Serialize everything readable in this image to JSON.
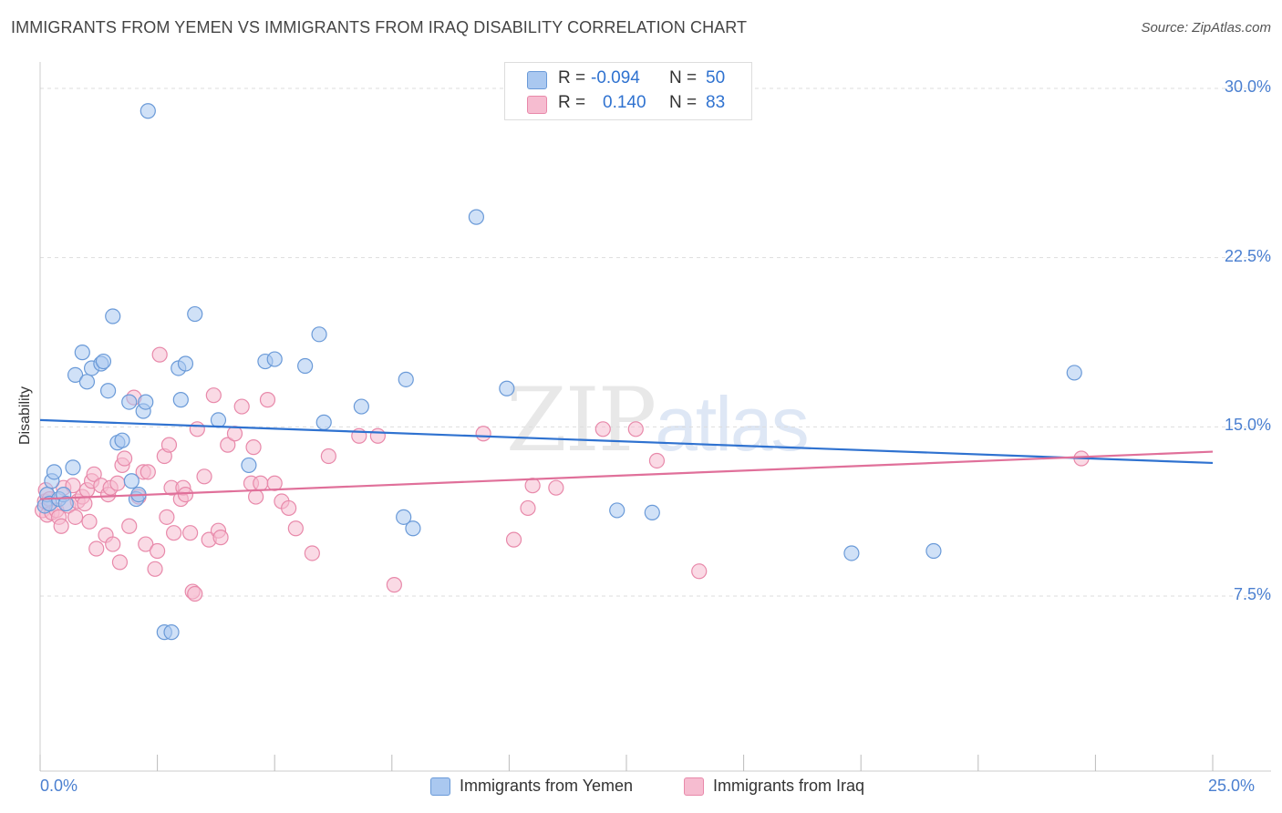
{
  "header": {
    "title": "IMMIGRANTS FROM YEMEN VS IMMIGRANTS FROM IRAQ DISABILITY CORRELATION CHART",
    "source": "Source: ZipAtlas.com"
  },
  "watermark": {
    "zip": "ZIP",
    "atlas": "atlas"
  },
  "stats": {
    "yemen": {
      "r_label": "R =",
      "r_value": "-0.094",
      "n_label": "N =",
      "n_value": "50"
    },
    "iraq": {
      "r_label": "R =",
      "r_value": "0.140",
      "n_label": "N =",
      "n_value": "83"
    }
  },
  "legend": {
    "yemen": "Immigrants from Yemen",
    "iraq": "Immigrants from Iraq"
  },
  "colors": {
    "yemen_fill": "#aac8f0",
    "yemen_stroke": "#6a9ad8",
    "yemen_line": "#2f72d0",
    "iraq_fill": "#f6bcd0",
    "iraq_stroke": "#e889aa",
    "iraq_line": "#e0709a",
    "tick_text": "#4a7fd0",
    "grid": "#dddddd"
  },
  "chart_data": {
    "type": "scatter",
    "title": "IMMIGRANTS FROM YEMEN VS IMMIGRANTS FROM IRAQ DISABILITY CORRELATION CHART",
    "xlabel": "",
    "ylabel": "Disability",
    "xlim": [
      0,
      25
    ],
    "ylim": [
      0,
      31
    ],
    "x_tick_labels": [
      "0.0%",
      "25.0%"
    ],
    "y_ticks": [
      7.5,
      15.0,
      22.5,
      30.0
    ],
    "y_tick_labels": [
      "7.5%",
      "15.0%",
      "22.5%",
      "30.0%"
    ],
    "grid": "horizontal dashed",
    "legend_position": "bottom-center",
    "series": [
      {
        "name": "Immigrants from Yemen",
        "trend": {
          "x": [
            0,
            25
          ],
          "y": [
            15.3,
            13.4
          ]
        },
        "points": [
          [
            0.1,
            11.5
          ],
          [
            0.15,
            12.0
          ],
          [
            0.2,
            11.6
          ],
          [
            0.25,
            12.6
          ],
          [
            0.3,
            13.0
          ],
          [
            0.4,
            11.8
          ],
          [
            0.5,
            12.0
          ],
          [
            0.55,
            11.6
          ],
          [
            0.7,
            13.2
          ],
          [
            0.75,
            17.3
          ],
          [
            0.9,
            18.3
          ],
          [
            1.0,
            17.0
          ],
          [
            1.1,
            17.6
          ],
          [
            1.3,
            17.8
          ],
          [
            1.35,
            17.9
          ],
          [
            1.45,
            16.6
          ],
          [
            1.55,
            19.9
          ],
          [
            1.65,
            14.3
          ],
          [
            1.75,
            14.4
          ],
          [
            1.9,
            16.1
          ],
          [
            1.95,
            12.6
          ],
          [
            2.05,
            11.8
          ],
          [
            2.1,
            12.0
          ],
          [
            2.2,
            15.7
          ],
          [
            2.25,
            16.1
          ],
          [
            2.3,
            29.0
          ],
          [
            2.65,
            5.9
          ],
          [
            2.8,
            5.9
          ],
          [
            2.95,
            17.6
          ],
          [
            3.0,
            16.2
          ],
          [
            3.1,
            17.8
          ],
          [
            3.3,
            20.0
          ],
          [
            3.8,
            15.3
          ],
          [
            4.45,
            13.3
          ],
          [
            4.8,
            17.9
          ],
          [
            5.0,
            18.0
          ],
          [
            5.65,
            17.7
          ],
          [
            5.95,
            19.1
          ],
          [
            6.05,
            15.2
          ],
          [
            6.85,
            15.9
          ],
          [
            7.75,
            11.0
          ],
          [
            7.8,
            17.1
          ],
          [
            7.95,
            10.5
          ],
          [
            9.3,
            24.3
          ],
          [
            9.95,
            16.7
          ],
          [
            12.3,
            11.3
          ],
          [
            13.05,
            11.2
          ],
          [
            17.3,
            9.4
          ],
          [
            19.05,
            9.5
          ],
          [
            22.05,
            17.4
          ]
        ]
      },
      {
        "name": "Immigrants from Iraq",
        "trend": {
          "x": [
            0,
            25
          ],
          "y": [
            11.8,
            13.9
          ]
        },
        "points": [
          [
            0.05,
            11.3
          ],
          [
            0.1,
            11.7
          ],
          [
            0.12,
            12.2
          ],
          [
            0.15,
            11.1
          ],
          [
            0.2,
            11.8
          ],
          [
            0.25,
            11.2
          ],
          [
            0.35,
            11.3
          ],
          [
            0.4,
            11.0
          ],
          [
            0.45,
            10.6
          ],
          [
            0.5,
            12.3
          ],
          [
            0.6,
            11.5
          ],
          [
            0.7,
            12.4
          ],
          [
            0.75,
            11.0
          ],
          [
            0.8,
            11.7
          ],
          [
            0.9,
            11.9
          ],
          [
            0.95,
            11.6
          ],
          [
            1.0,
            12.2
          ],
          [
            1.05,
            10.8
          ],
          [
            1.1,
            12.6
          ],
          [
            1.15,
            12.9
          ],
          [
            1.2,
            9.6
          ],
          [
            1.3,
            12.4
          ],
          [
            1.4,
            10.2
          ],
          [
            1.45,
            12.0
          ],
          [
            1.5,
            12.3
          ],
          [
            1.55,
            9.8
          ],
          [
            1.65,
            12.5
          ],
          [
            1.7,
            9.0
          ],
          [
            1.75,
            13.3
          ],
          [
            1.8,
            13.6
          ],
          [
            1.9,
            10.6
          ],
          [
            2.0,
            16.3
          ],
          [
            2.1,
            11.9
          ],
          [
            2.2,
            13.0
          ],
          [
            2.25,
            9.8
          ],
          [
            2.3,
            13.0
          ],
          [
            2.45,
            8.7
          ],
          [
            2.5,
            9.5
          ],
          [
            2.55,
            18.2
          ],
          [
            2.65,
            13.7
          ],
          [
            2.7,
            11.0
          ],
          [
            2.75,
            14.2
          ],
          [
            2.8,
            12.3
          ],
          [
            2.85,
            10.3
          ],
          [
            3.0,
            11.8
          ],
          [
            3.05,
            12.3
          ],
          [
            3.1,
            12.0
          ],
          [
            3.2,
            10.3
          ],
          [
            3.25,
            7.7
          ],
          [
            3.3,
            7.6
          ],
          [
            3.35,
            14.9
          ],
          [
            3.5,
            12.8
          ],
          [
            3.6,
            10.0
          ],
          [
            3.7,
            16.4
          ],
          [
            3.8,
            10.4
          ],
          [
            3.85,
            10.1
          ],
          [
            4.0,
            14.2
          ],
          [
            4.15,
            14.7
          ],
          [
            4.3,
            15.9
          ],
          [
            4.5,
            12.5
          ],
          [
            4.55,
            14.1
          ],
          [
            4.6,
            11.9
          ],
          [
            4.7,
            12.5
          ],
          [
            4.85,
            16.2
          ],
          [
            5.0,
            12.5
          ],
          [
            5.15,
            11.7
          ],
          [
            5.3,
            11.4
          ],
          [
            5.45,
            10.5
          ],
          [
            5.8,
            9.4
          ],
          [
            6.15,
            13.7
          ],
          [
            6.8,
            14.6
          ],
          [
            7.2,
            14.6
          ],
          [
            7.55,
            8.0
          ],
          [
            9.45,
            14.7
          ],
          [
            10.1,
            10.0
          ],
          [
            10.4,
            11.4
          ],
          [
            10.5,
            12.4
          ],
          [
            11.0,
            12.3
          ],
          [
            12.0,
            14.9
          ],
          [
            12.7,
            14.9
          ],
          [
            13.15,
            13.5
          ],
          [
            14.05,
            8.6
          ],
          [
            22.2,
            13.6
          ]
        ]
      }
    ]
  }
}
